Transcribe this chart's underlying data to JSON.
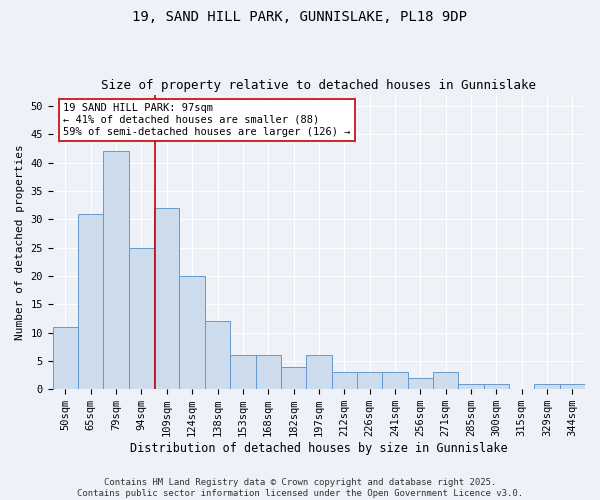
{
  "title1": "19, SAND HILL PARK, GUNNISLAKE, PL18 9DP",
  "title2": "Size of property relative to detached houses in Gunnislake",
  "xlabel": "Distribution of detached houses by size in Gunnislake",
  "ylabel": "Number of detached properties",
  "categories": [
    "50sqm",
    "65sqm",
    "79sqm",
    "94sqm",
    "109sqm",
    "124sqm",
    "138sqm",
    "153sqm",
    "168sqm",
    "182sqm",
    "197sqm",
    "212sqm",
    "226sqm",
    "241sqm",
    "256sqm",
    "271sqm",
    "285sqm",
    "300sqm",
    "315sqm",
    "329sqm",
    "344sqm"
  ],
  "values": [
    11,
    31,
    42,
    25,
    32,
    20,
    12,
    6,
    6,
    4,
    6,
    3,
    3,
    3,
    2,
    3,
    1,
    1,
    0,
    1,
    1
  ],
  "bar_color": "#ccdcec",
  "bar_edgecolor": "#6699cc",
  "bar_linewidth": 0.7,
  "vline_x": 3.55,
  "vline_color": "#cc0000",
  "vline_linewidth": 1.2,
  "annotation_text": "19 SAND HILL PARK: 97sqm\n← 41% of detached houses are smaller (88)\n59% of semi-detached houses are larger (126) →",
  "annotation_box_color": "#ffffff",
  "annotation_box_edgecolor": "#cc0000",
  "annotation_fontsize": 7.5,
  "background_color": "#eef2f8",
  "ylim": [
    0,
    52
  ],
  "yticks": [
    0,
    5,
    10,
    15,
    20,
    25,
    30,
    35,
    40,
    45,
    50
  ],
  "footer_text": "Contains HM Land Registry data © Crown copyright and database right 2025.\nContains public sector information licensed under the Open Government Licence v3.0.",
  "title1_fontsize": 10,
  "title2_fontsize": 9,
  "xlabel_fontsize": 8.5,
  "ylabel_fontsize": 8,
  "tick_fontsize": 7.5,
  "footer_fontsize": 6.5,
  "grid_color": "#ffffff",
  "grid_linewidth": 0.8
}
